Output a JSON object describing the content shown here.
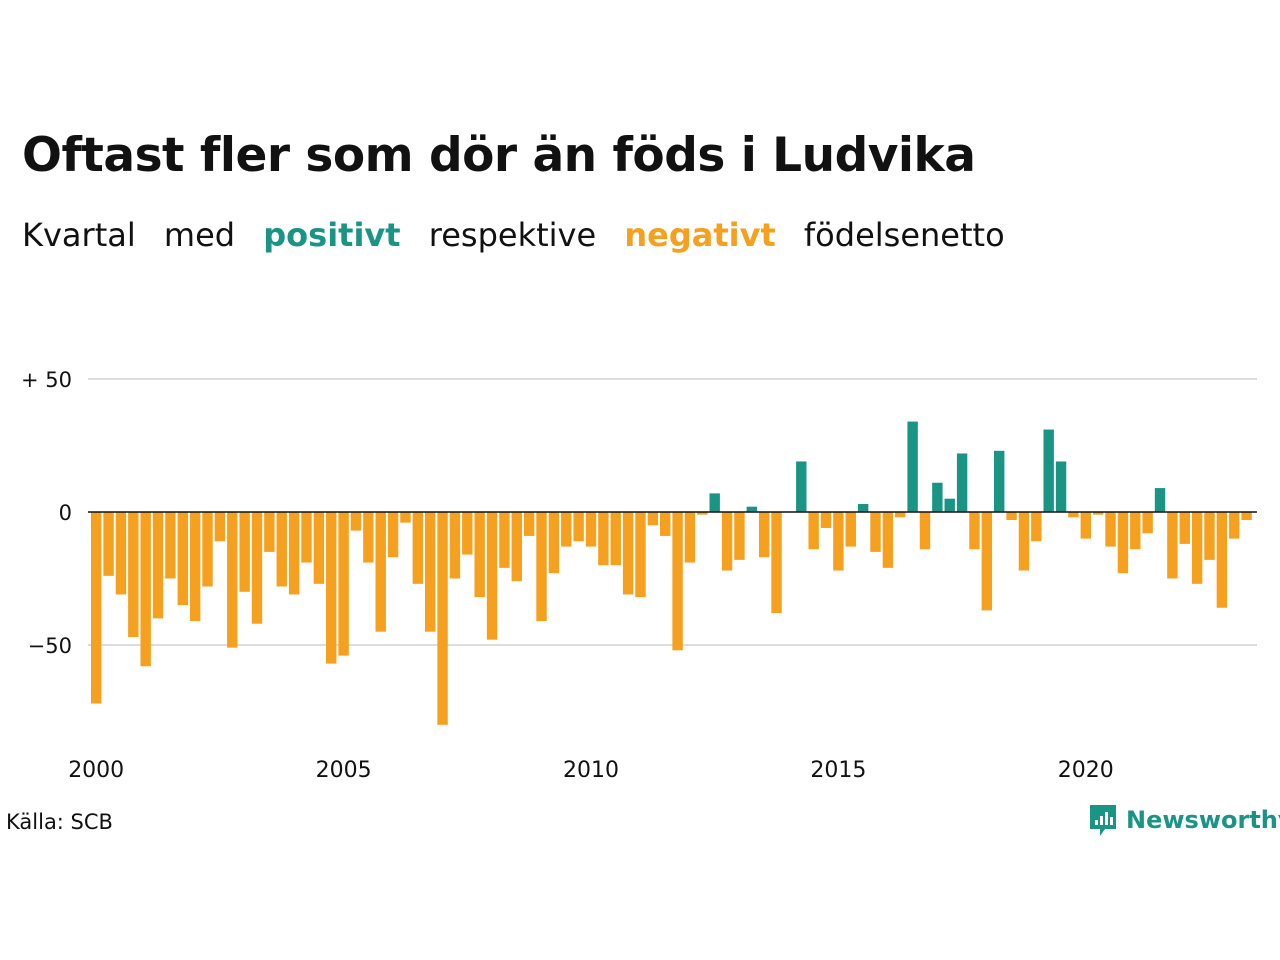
{
  "title": "Oftast fler som dör än föds i Ludvika",
  "subtitle": {
    "w1": "Kvartal",
    "w2": "med",
    "positive": "positivt",
    "w3": "respektive",
    "negative": "negativt",
    "w4": "födelsenetto"
  },
  "source": "Källa: SCB",
  "brand": "Newsworthy",
  "colors": {
    "positive": "#1a9485",
    "negative": "#f5a01f",
    "brand": "#1a9485",
    "grid": "#dddddd",
    "text": "#111111"
  },
  "chart_data": {
    "type": "bar",
    "x_start": "2000 Q1",
    "frequency": "quarterly",
    "values": [
      -72,
      -24,
      -31,
      -47,
      -58,
      -40,
      -25,
      -35,
      -41,
      -28,
      -11,
      -51,
      -30,
      -42,
      -15,
      -28,
      -31,
      -19,
      -27,
      -57,
      -54,
      -7,
      -19,
      -45,
      -17,
      -4,
      -27,
      -45,
      -80,
      -25,
      -16,
      -32,
      -48,
      -21,
      -26,
      -9,
      -41,
      -23,
      -13,
      -11,
      -13,
      -20,
      -20,
      -31,
      -32,
      -5,
      -9,
      -52,
      -19,
      -1,
      7,
      -22,
      -18,
      2,
      -17,
      -38,
      0,
      19,
      -14,
      -6,
      -22,
      -13,
      3,
      -15,
      -21,
      -2,
      34,
      -14,
      11,
      5,
      22,
      -14,
      -37,
      23,
      -3,
      -22,
      -11,
      31,
      19,
      -2,
      -10,
      -1,
      -13,
      -23,
      -14,
      -8,
      9,
      -25,
      -12,
      -27,
      -18,
      -36,
      -10,
      -3
    ],
    "x_ticks": [
      "2000",
      "2005",
      "2010",
      "2015",
      "2020"
    ],
    "y_ticks": [
      "+ 50",
      "0",
      "−50"
    ],
    "y_tick_values": [
      50,
      0,
      -50
    ],
    "ylim": [
      -85,
      52
    ],
    "grid": true,
    "legend": "none"
  }
}
